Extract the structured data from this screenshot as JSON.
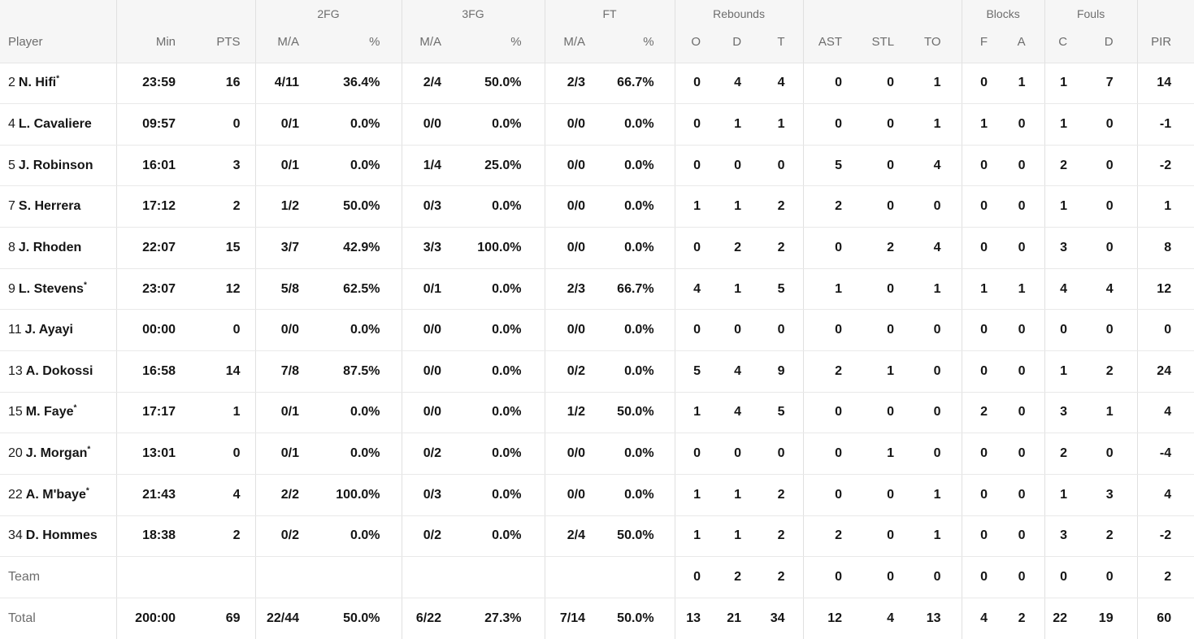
{
  "header": {
    "groups": [
      {
        "label": "",
        "span": 1
      },
      {
        "label": "",
        "span": 2
      },
      {
        "label": "2FG",
        "span": 2
      },
      {
        "label": "3FG",
        "span": 2
      },
      {
        "label": "FT",
        "span": 2
      },
      {
        "label": "Rebounds",
        "span": 3
      },
      {
        "label": "",
        "span": 3
      },
      {
        "label": "Blocks",
        "span": 2
      },
      {
        "label": "Fouls",
        "span": 2
      },
      {
        "label": "",
        "span": 1
      }
    ],
    "columns": [
      "Player",
      "Min",
      "PTS",
      "M/A",
      "%",
      "M/A",
      "%",
      "M/A",
      "%",
      "O",
      "D",
      "T",
      "AST",
      "STL",
      "TO",
      "F",
      "A",
      "C",
      "D",
      "PIR"
    ]
  },
  "rows": [
    {
      "type": "player",
      "num": "2",
      "name": "N. Hifi",
      "star": "*",
      "stats": [
        "23:59",
        "16",
        "4/11",
        "36.4%",
        "2/4",
        "50.0%",
        "2/3",
        "66.7%",
        "0",
        "4",
        "4",
        "0",
        "0",
        "1",
        "0",
        "1",
        "1",
        "7",
        "14"
      ]
    },
    {
      "type": "player",
      "num": "4",
      "name": "L. Cavaliere",
      "star": "",
      "stats": [
        "09:57",
        "0",
        "0/1",
        "0.0%",
        "0/0",
        "0.0%",
        "0/0",
        "0.0%",
        "0",
        "1",
        "1",
        "0",
        "0",
        "1",
        "1",
        "0",
        "1",
        "0",
        "-1"
      ]
    },
    {
      "type": "player",
      "num": "5",
      "name": "J. Robinson",
      "star": "",
      "stats": [
        "16:01",
        "3",
        "0/1",
        "0.0%",
        "1/4",
        "25.0%",
        "0/0",
        "0.0%",
        "0",
        "0",
        "0",
        "5",
        "0",
        "4",
        "0",
        "0",
        "2",
        "0",
        "-2"
      ]
    },
    {
      "type": "player",
      "num": "7",
      "name": "S. Herrera",
      "star": "",
      "stats": [
        "17:12",
        "2",
        "1/2",
        "50.0%",
        "0/3",
        "0.0%",
        "0/0",
        "0.0%",
        "1",
        "1",
        "2",
        "2",
        "0",
        "0",
        "0",
        "0",
        "1",
        "0",
        "1"
      ]
    },
    {
      "type": "player",
      "num": "8",
      "name": "J. Rhoden",
      "star": "",
      "stats": [
        "22:07",
        "15",
        "3/7",
        "42.9%",
        "3/3",
        "100.0%",
        "0/0",
        "0.0%",
        "0",
        "2",
        "2",
        "0",
        "2",
        "4",
        "0",
        "0",
        "3",
        "0",
        "8"
      ]
    },
    {
      "type": "player",
      "num": "9",
      "name": "L. Stevens",
      "star": "*",
      "stats": [
        "23:07",
        "12",
        "5/8",
        "62.5%",
        "0/1",
        "0.0%",
        "2/3",
        "66.7%",
        "4",
        "1",
        "5",
        "1",
        "0",
        "1",
        "1",
        "1",
        "4",
        "4",
        "12"
      ]
    },
    {
      "type": "player",
      "num": "11",
      "name": "J. Ayayi",
      "star": "",
      "stats": [
        "00:00",
        "0",
        "0/0",
        "0.0%",
        "0/0",
        "0.0%",
        "0/0",
        "0.0%",
        "0",
        "0",
        "0",
        "0",
        "0",
        "0",
        "0",
        "0",
        "0",
        "0",
        "0"
      ]
    },
    {
      "type": "player",
      "num": "13",
      "name": "A. Dokossi",
      "star": "",
      "stats": [
        "16:58",
        "14",
        "7/8",
        "87.5%",
        "0/0",
        "0.0%",
        "0/2",
        "0.0%",
        "5",
        "4",
        "9",
        "2",
        "1",
        "0",
        "0",
        "0",
        "1",
        "2",
        "24"
      ]
    },
    {
      "type": "player",
      "num": "15",
      "name": "M. Faye",
      "star": "*",
      "stats": [
        "17:17",
        "1",
        "0/1",
        "0.0%",
        "0/0",
        "0.0%",
        "1/2",
        "50.0%",
        "1",
        "4",
        "5",
        "0",
        "0",
        "0",
        "2",
        "0",
        "3",
        "1",
        "4"
      ]
    },
    {
      "type": "player",
      "num": "20",
      "name": "J. Morgan",
      "star": "*",
      "stats": [
        "13:01",
        "0",
        "0/1",
        "0.0%",
        "0/2",
        "0.0%",
        "0/0",
        "0.0%",
        "0",
        "0",
        "0",
        "0",
        "1",
        "0",
        "0",
        "0",
        "2",
        "0",
        "-4"
      ]
    },
    {
      "type": "player",
      "num": "22",
      "name": "A. M'baye",
      "star": "*",
      "stats": [
        "21:43",
        "4",
        "2/2",
        "100.0%",
        "0/3",
        "0.0%",
        "0/0",
        "0.0%",
        "1",
        "1",
        "2",
        "0",
        "0",
        "1",
        "0",
        "0",
        "1",
        "3",
        "4"
      ]
    },
    {
      "type": "player",
      "num": "34",
      "name": "D. Hommes",
      "star": "",
      "stats": [
        "18:38",
        "2",
        "0/2",
        "0.0%",
        "0/2",
        "0.0%",
        "2/4",
        "50.0%",
        "1",
        "1",
        "2",
        "2",
        "0",
        "1",
        "0",
        "0",
        "3",
        "2",
        "-2"
      ]
    },
    {
      "type": "summary",
      "label": "Team",
      "stats": [
        "",
        "",
        "",
        "",
        "",
        "",
        "",
        "",
        "0",
        "2",
        "2",
        "0",
        "0",
        "0",
        "0",
        "0",
        "0",
        "0",
        "2"
      ]
    },
    {
      "type": "summary",
      "label": "Total",
      "stats": [
        "200:00",
        "69",
        "22/44",
        "50.0%",
        "6/22",
        "27.3%",
        "7/14",
        "50.0%",
        "13",
        "21",
        "34",
        "12",
        "4",
        "13",
        "4",
        "2",
        "22",
        "19",
        "60"
      ]
    }
  ],
  "colors": {
    "header_bg": "#f6f6f6",
    "header_text": "#6d6d6d",
    "body_text": "#151515",
    "border": "#e5e5e5",
    "summary_text": "#6d6d6d"
  }
}
